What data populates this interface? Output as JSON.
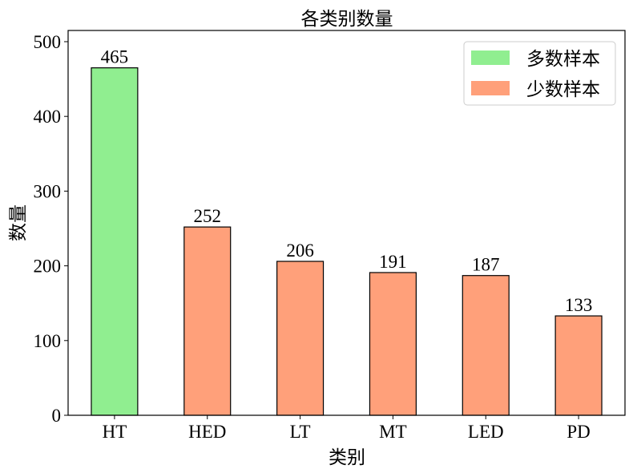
{
  "chart_data": {
    "type": "bar",
    "title": "各类别数量",
    "xlabel": "类别",
    "ylabel": "数量",
    "categories": [
      "HT",
      "HED",
      "LT",
      "MT",
      "LED",
      "PD"
    ],
    "values": [
      465,
      252,
      206,
      191,
      187,
      133
    ],
    "data_labels": [
      "465",
      "252",
      "206",
      "191",
      "187",
      "133"
    ],
    "bar_groups": [
      "majority",
      "minority",
      "minority",
      "minority",
      "minority",
      "minority"
    ],
    "ylim": [
      0,
      515
    ],
    "yticks": [
      0,
      100,
      200,
      300,
      400,
      500
    ],
    "ytick_labels": [
      "0",
      "100",
      "200",
      "300",
      "400",
      "500"
    ],
    "grid": false,
    "legend": {
      "placement": "top-right",
      "entries": [
        {
          "label": "多数样本",
          "color": "#90ee90"
        },
        {
          "label": "少数样本",
          "color": "#ffa07a"
        }
      ]
    },
    "colors": {
      "majority": "#90ee90",
      "minority": "#ffa07a",
      "edge": "#000000"
    }
  }
}
